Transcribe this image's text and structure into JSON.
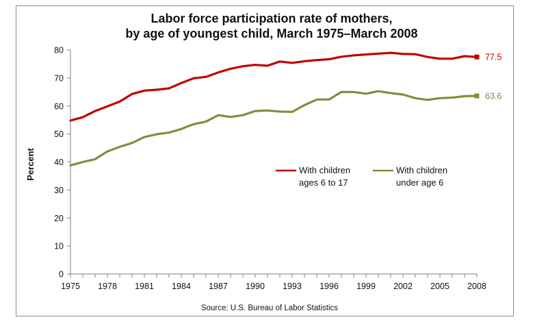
{
  "chart_data": {
    "type": "line",
    "title_lines": [
      "Labor force participation rate of mothers,",
      "by age of youngest child, March 1975–March 2008"
    ],
    "xlabel": "",
    "ylabel": "Percent",
    "xlim": [
      1975,
      2008
    ],
    "ylim": [
      0,
      80
    ],
    "x_ticks": [
      "1975",
      "1978",
      "1981",
      "1984",
      "1987",
      "1990",
      "1993",
      "1996",
      "1999",
      "2002",
      "2005",
      "2008"
    ],
    "y_ticks": [
      "0",
      "10",
      "20",
      "30",
      "40",
      "50",
      "60",
      "70",
      "80"
    ],
    "grid": false,
    "legend_position": "center-right",
    "source": "Source: U.S. Bureau of Labor Statistics",
    "x": [
      1975,
      1976,
      1977,
      1978,
      1979,
      1980,
      1981,
      1982,
      1983,
      1984,
      1985,
      1986,
      1987,
      1988,
      1989,
      1990,
      1991,
      1992,
      1993,
      1994,
      1995,
      1996,
      1997,
      1998,
      1999,
      2000,
      2001,
      2002,
      2003,
      2004,
      2005,
      2006,
      2007,
      2008
    ],
    "series": [
      {
        "name_lines": [
          "With children",
          "ages 6 to 17"
        ],
        "color": "#c00000",
        "end_label": "77.5",
        "values": [
          54.8,
          56.0,
          58.2,
          59.9,
          61.6,
          64.3,
          65.5,
          65.8,
          66.3,
          68.2,
          69.9,
          70.4,
          72.0,
          73.3,
          74.2,
          74.7,
          74.4,
          75.9,
          75.4,
          76.0,
          76.4,
          76.7,
          77.6,
          78.1,
          78.4,
          78.7,
          79.0,
          78.6,
          78.5,
          77.5,
          76.9,
          76.9,
          77.8,
          77.5
        ]
      },
      {
        "name_lines": [
          "With children",
          "under age 6"
        ],
        "color": "#77933c",
        "end_label": "63.6",
        "values": [
          38.8,
          40.0,
          41.0,
          43.8,
          45.4,
          46.8,
          48.9,
          49.9,
          50.5,
          51.8,
          53.5,
          54.4,
          56.7,
          56.1,
          56.7,
          58.2,
          58.4,
          58.0,
          57.9,
          60.3,
          62.3,
          62.3,
          65.0,
          65.0,
          64.4,
          65.3,
          64.6,
          64.1,
          62.8,
          62.2,
          62.8,
          63.0,
          63.5,
          63.6
        ]
      }
    ]
  }
}
